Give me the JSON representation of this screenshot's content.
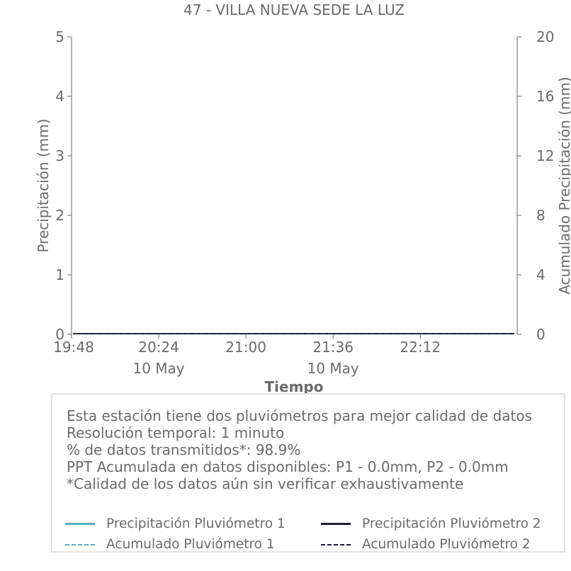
{
  "chart_data": {
    "type": "line",
    "title": "47 - VILLA NUEVA SEDE LA LUZ",
    "xlabel": "Tiempo",
    "ylabel": "Precipitación (mm)",
    "y2label": "Acumulado Precipitación (mm)",
    "ylim": [
      0,
      5
    ],
    "y2lim": [
      0,
      20
    ],
    "yticks": [
      "0",
      "1",
      "2",
      "3",
      "4",
      "5"
    ],
    "y2ticks": [
      "0",
      "4",
      "8",
      "12",
      "16",
      "20"
    ],
    "xlim": [
      "19:48",
      "22:52"
    ],
    "xticks": [
      {
        "time": "19:48",
        "date": ""
      },
      {
        "time": "20:24",
        "date": "10 May"
      },
      {
        "time": "21:00",
        "date": ""
      },
      {
        "time": "21:36",
        "date": "10 May"
      },
      {
        "time": "22:12",
        "date": ""
      }
    ],
    "grid": false,
    "series": [
      {
        "name": "Precipitación Pluviómetro 1",
        "axis": "left",
        "style": "solid",
        "color": "#4fb3c6",
        "x": [
          "19:48",
          "22:52"
        ],
        "values": [
          0,
          0
        ]
      },
      {
        "name": "Precipitación Pluviómetro 2",
        "axis": "left",
        "style": "solid",
        "color": "#1c1c3c",
        "x": [
          "19:48",
          "22:52"
        ],
        "values": [
          0,
          0
        ]
      },
      {
        "name": "Acumulado Pluviómetro 1",
        "axis": "right",
        "style": "dashed",
        "color": "#4fb3c6",
        "x": [
          "19:48",
          "22:52"
        ],
        "values": [
          0,
          0
        ]
      },
      {
        "name": "Acumulado Pluviómetro 2",
        "axis": "right",
        "style": "dashed",
        "color": "#1c1c3c",
        "x": [
          "19:48",
          "22:52"
        ],
        "values": [
          0,
          0
        ]
      }
    ]
  },
  "info": {
    "lines": [
      "Esta estación tiene dos pluviómetros para mejor calidad de datos",
      "Resolución temporal: 1 minuto",
      "% de datos transmitidos*: 98.9%",
      "PPT Acumulada en datos disponibles: P1 - 0.0mm, P2 - 0.0mm",
      "*Calidad de los datos aún sin verificar exhaustivamente"
    ]
  },
  "legend": {
    "placement": "bottom"
  }
}
